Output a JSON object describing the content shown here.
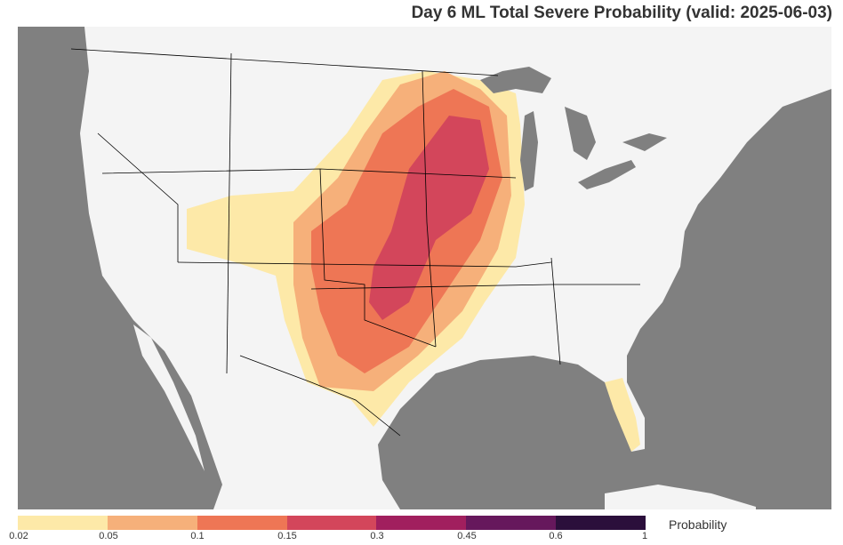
{
  "title": "Day 6 ML Total Severe Probability (valid: 2025-06-03)",
  "map": {
    "ocean_color": "#808080",
    "land_color": "#f4f4f4",
    "border_color": "#000000"
  },
  "colorbar": {
    "label": "Probability",
    "ticks": [
      "0.02",
      "0.05",
      "0.1",
      "0.15",
      "0.3",
      "0.45",
      "0.6",
      "1"
    ],
    "colors": [
      "#fde9a8",
      "#f6b07a",
      "#ee7655",
      "#d3465b",
      "#a11f5e",
      "#66185c",
      "#2b0f3b"
    ]
  }
}
